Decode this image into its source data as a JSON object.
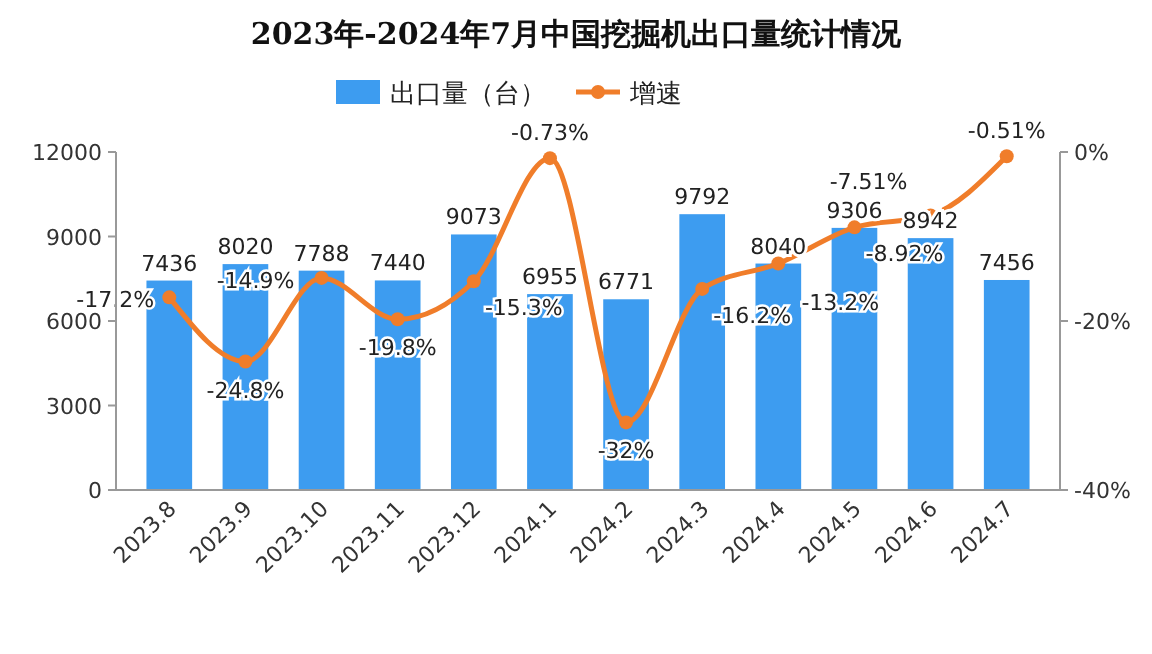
{
  "chart_data": {
    "type": "bar",
    "title": "2023年-2024年7月中国挖掘机出口量统计情况",
    "categories": [
      "2023.8",
      "2023.9",
      "2023.10",
      "2023.11",
      "2023.12",
      "2024.1",
      "2024.2",
      "2024.3",
      "2024.4",
      "2024.5",
      "2024.6",
      "2024.7"
    ],
    "series": [
      {
        "name": "出口量（台）",
        "color": "#3d9cf0",
        "values": [
          7436,
          8020,
          7788,
          7440,
          9073,
          6955,
          6771,
          9792,
          8040,
          9306,
          8942,
          7456
        ]
      },
      {
        "name": "增速",
        "type": "line",
        "axis": "y2",
        "color": "#f07d2a",
        "values": [
          -17.2,
          -24.8,
          -14.9,
          -19.8,
          -15.3,
          -0.73,
          -32,
          -16.2,
          -13.2,
          -8.92,
          -7.51,
          -0.51
        ],
        "value_labels": [
          "-17.2%",
          "-24.8%",
          "-14.9%",
          "-19.8%",
          "-15.3%",
          "-0.73%",
          "-32%",
          "-16.2%",
          "-13.2%",
          "-8.92%",
          "-7.51%",
          "-0.51%"
        ]
      }
    ],
    "ylim": [
      0,
      12000
    ],
    "yticks": [
      0,
      3000,
      6000,
      9000,
      12000
    ],
    "y2lim": [
      -40,
      0
    ],
    "y2ticks": [
      {
        "value": 0,
        "label": "0%"
      },
      {
        "value": -20,
        "label": "-20%"
      },
      {
        "value": -40,
        "label": "-40%"
      }
    ],
    "data_labels": true,
    "legend": "top",
    "marker": "circle",
    "grid": false
  }
}
